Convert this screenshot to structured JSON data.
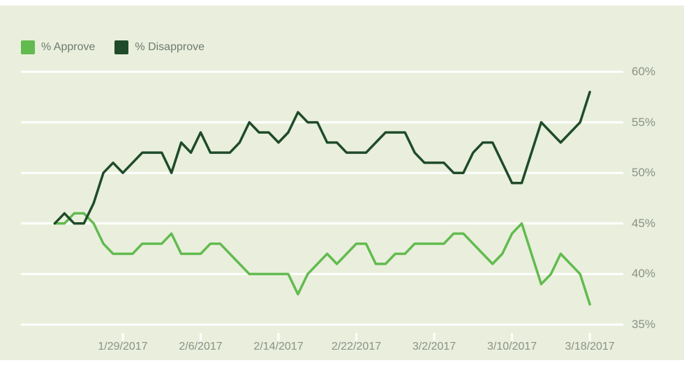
{
  "chart_data": {
    "type": "line",
    "title": "",
    "xlabel": "",
    "ylabel": "",
    "ylim": [
      35,
      60
    ],
    "grid": "horizontal-white-lines",
    "legend_position": "top-left",
    "background_color": "#e9efdc",
    "axis_text_color": "#8b9187",
    "legend_text_color": "#6f7a70",
    "gridline_color": "#ffffff",
    "x": [
      "1/22/2017",
      "1/23/2017",
      "1/24/2017",
      "1/25/2017",
      "1/26/2017",
      "1/27/2017",
      "1/28/2017",
      "1/29/2017",
      "1/30/2017",
      "1/31/2017",
      "2/1/2017",
      "2/2/2017",
      "2/3/2017",
      "2/4/2017",
      "2/5/2017",
      "2/6/2017",
      "2/7/2017",
      "2/8/2017",
      "2/9/2017",
      "2/10/2017",
      "2/11/2017",
      "2/12/2017",
      "2/13/2017",
      "2/14/2017",
      "2/15/2017",
      "2/16/2017",
      "2/17/2017",
      "2/18/2017",
      "2/19/2017",
      "2/20/2017",
      "2/21/2017",
      "2/22/2017",
      "2/23/2017",
      "2/24/2017",
      "2/25/2017",
      "2/26/2017",
      "2/27/2017",
      "2/28/2017",
      "3/1/2017",
      "3/2/2017",
      "3/3/2017",
      "3/4/2017",
      "3/5/2017",
      "3/6/2017",
      "3/7/2017",
      "3/8/2017",
      "3/9/2017",
      "3/10/2017",
      "3/11/2017",
      "3/12/2017",
      "3/13/2017",
      "3/14/2017",
      "3/15/2017",
      "3/16/2017",
      "3/17/2017",
      "3/18/2017"
    ],
    "series": [
      {
        "name": "% Approve",
        "color": "#62bb4f",
        "values": [
          45,
          45,
          46,
          46,
          45,
          43,
          42,
          42,
          42,
          43,
          43,
          43,
          44,
          42,
          42,
          42,
          43,
          43,
          42,
          41,
          40,
          40,
          40,
          40,
          40,
          38,
          40,
          41,
          42,
          41,
          42,
          43,
          43,
          41,
          41,
          42,
          42,
          43,
          43,
          43,
          43,
          44,
          44,
          43,
          42,
          41,
          42,
          44,
          45,
          42,
          39,
          40,
          42,
          41,
          40,
          37
        ]
      },
      {
        "name": "% Disapprove",
        "color": "#1f4b2a",
        "values": [
          45,
          46,
          45,
          45,
          47,
          50,
          51,
          50,
          51,
          52,
          52,
          52,
          50,
          53,
          52,
          54,
          52,
          52,
          52,
          53,
          55,
          54,
          54,
          53,
          54,
          56,
          55,
          55,
          53,
          53,
          52,
          52,
          52,
          53,
          54,
          54,
          54,
          52,
          51,
          51,
          51,
          50,
          50,
          52,
          53,
          53,
          51,
          49,
          49,
          52,
          55,
          54,
          53,
          54,
          55,
          58
        ]
      }
    ],
    "x_tick_labels": [
      "1/29/2017",
      "2/6/2017",
      "2/14/2017",
      "2/22/2017",
      "3/2/2017",
      "3/10/2017",
      "3/18/2017"
    ],
    "x_tick_indices": [
      7,
      15,
      23,
      31,
      39,
      47,
      55
    ],
    "y_tick_labels": [
      "60%",
      "55%",
      "50%",
      "45%",
      "40%",
      "35%"
    ],
    "y_tick_values": [
      60,
      55,
      50,
      45,
      40,
      35
    ]
  }
}
